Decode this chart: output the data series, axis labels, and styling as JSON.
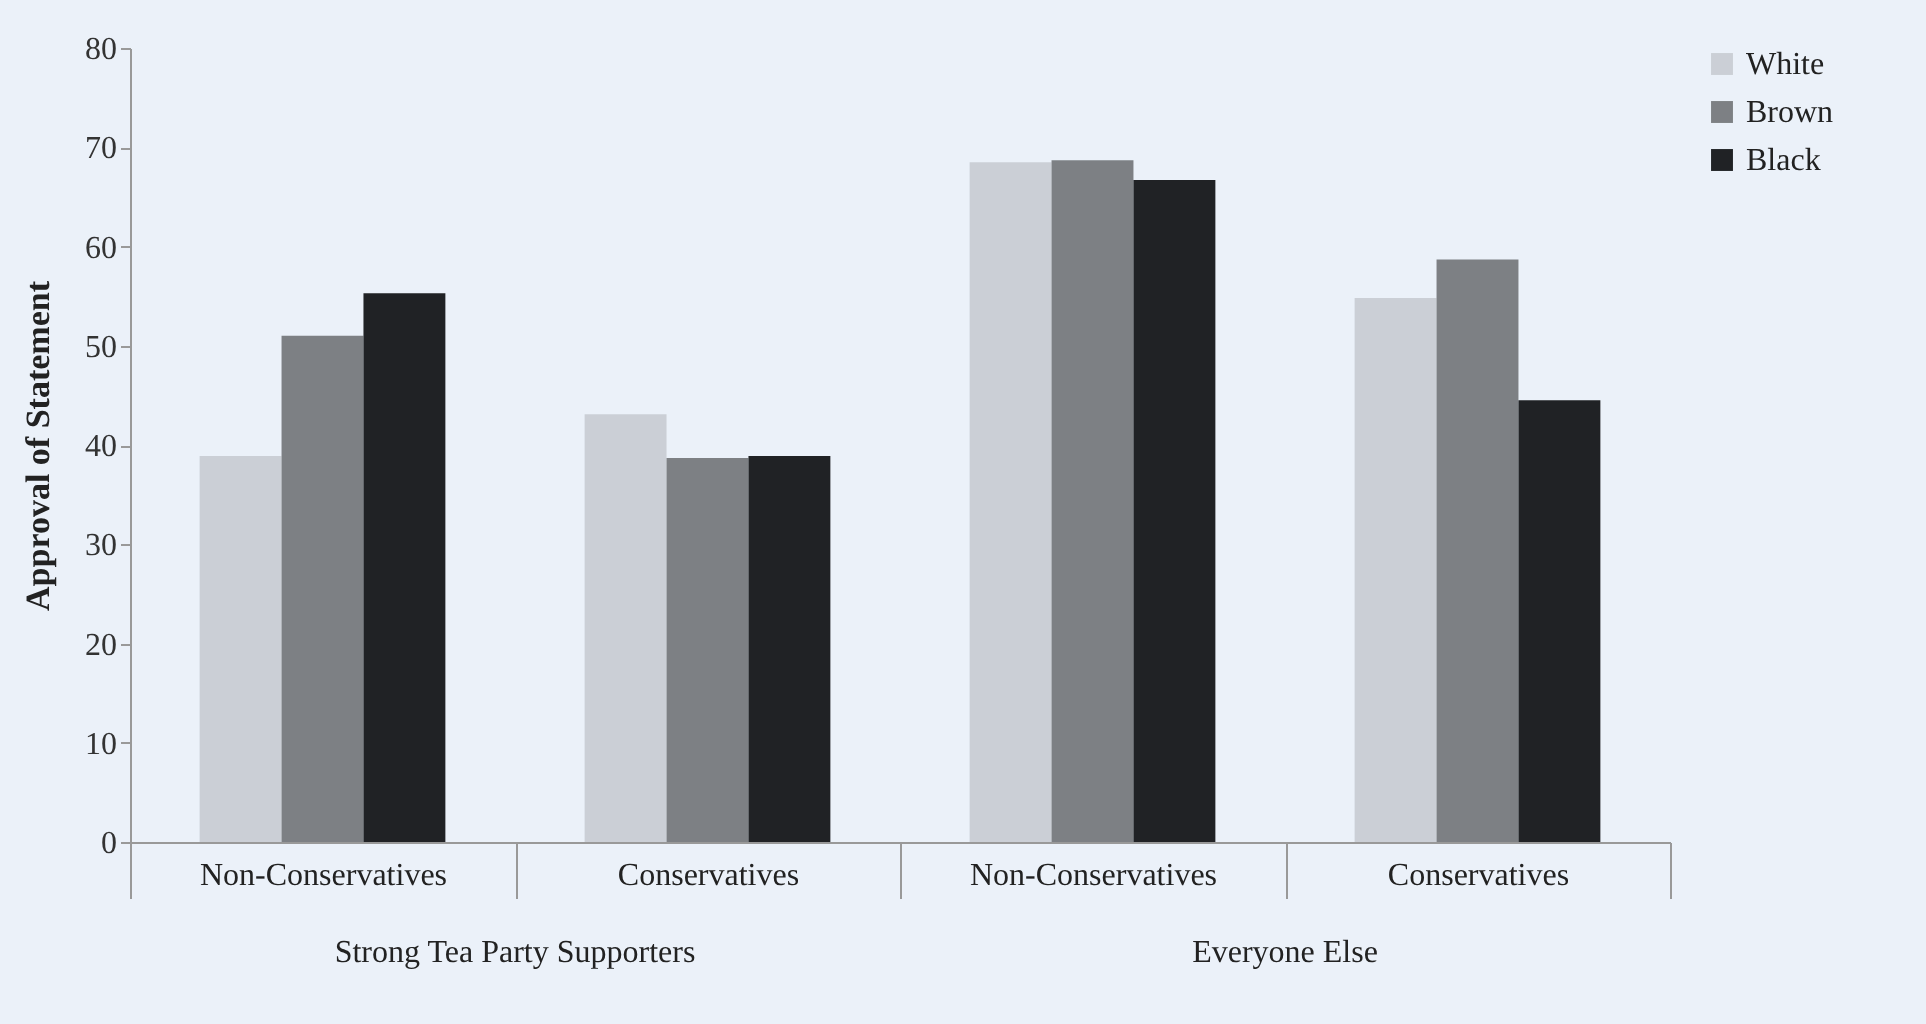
{
  "chart_data": {
    "type": "bar",
    "ylabel": "Approval of Statement",
    "categories": [
      "Non-Conservatives",
      "Conservatives",
      "Non-Conservatives",
      "Conservatives"
    ],
    "series": [
      {
        "name": "White",
        "color": "#cbcfd6",
        "values": [
          38.9,
          43.1,
          68.5,
          54.8
        ]
      },
      {
        "name": "Brown",
        "color": "#7d8084",
        "values": [
          51.0,
          38.7,
          68.7,
          58.7
        ]
      },
      {
        "name": "Black",
        "color": "#202225",
        "values": [
          55.3,
          38.9,
          66.7,
          44.5
        ]
      }
    ],
    "ylim": [
      0,
      80
    ],
    "yticks": [
      0,
      10,
      20,
      30,
      40,
      50,
      60,
      70,
      80
    ],
    "grid": false,
    "legend": "right",
    "annotations": [
      "Strong Tea Party Supporters",
      "Everyone Else"
    ]
  }
}
